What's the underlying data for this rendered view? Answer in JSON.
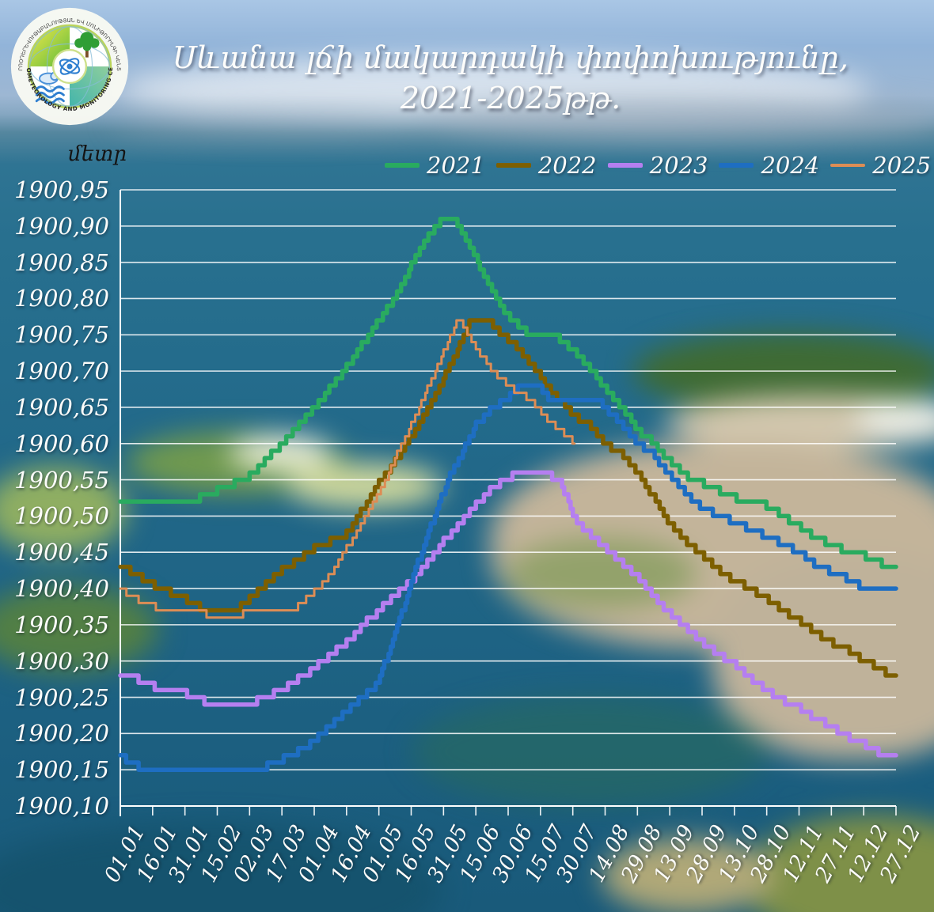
{
  "header": {
    "logo": {
      "top_text": "«ՀԻԴՐՈՕԴԵՐԵՎՈՒԹԱԲԱՆՈՒԹՅԱՆ ԵՎ ՄՈՆԻԹՈՐԻՆԳԻ ԿԵՆՏՐՈՆ»",
      "bottom_text": "\"HYDROMETEOROLOGY AND MONITORING CENTER\""
    },
    "title_line1": "Սևանա լճի մակարդակի փոփոխությունը,",
    "title_line2": "2021-2025թթ."
  },
  "chart_data": {
    "type": "line",
    "line_style": "stepped",
    "title": "Սևանա լճի մակարդակի փոփոխությունը, 2021-2025թթ.",
    "y_axis_title": "մետր",
    "ylim": [
      1900.1,
      1900.95
    ],
    "y_tick_step": 0.05,
    "y_tick_labels": [
      "1900,95",
      "1900,90",
      "1900,85",
      "1900,80",
      "1900,75",
      "1900,70",
      "1900,65",
      "1900,60",
      "1900,55",
      "1900,50",
      "1900,45",
      "1900,40",
      "1900,35",
      "1900,30",
      "1900,25",
      "1900,20",
      "1900,15",
      "1900,10"
    ],
    "x_tick_labels": [
      "01.01",
      "16.01",
      "31.01",
      "15.02",
      "02.03",
      "17.03",
      "01.04",
      "16.04",
      "01.05",
      "16.05",
      "31.05",
      "15.06",
      "30.06",
      "15.07",
      "30.07",
      "14.08",
      "29.08",
      "13.09",
      "28.09",
      "13.10",
      "28.10",
      "12.11",
      "27.11",
      "12.12",
      "27.12"
    ],
    "x_days_per_tick": 15,
    "grid": true,
    "legend_position": "top",
    "series": [
      {
        "name": "2021",
        "color": "#29ab5f",
        "stroke_width": 5.5,
        "keypoints": [
          [
            0,
            1900.52
          ],
          [
            2.2,
            1900.52
          ],
          [
            3,
            1900.535
          ],
          [
            4,
            1900.555
          ],
          [
            5,
            1900.6
          ],
          [
            6,
            1900.65
          ],
          [
            7,
            1900.705
          ],
          [
            8,
            1900.77
          ],
          [
            8.5,
            1900.8
          ],
          [
            9,
            1900.845
          ],
          [
            9.6,
            1900.89
          ],
          [
            9.9,
            1900.905
          ],
          [
            10.3,
            1900.91
          ],
          [
            10.5,
            1900.9
          ],
          [
            11,
            1900.855
          ],
          [
            11.5,
            1900.81
          ],
          [
            12,
            1900.775
          ],
          [
            12.5,
            1900.755
          ],
          [
            12.7,
            1900.75
          ],
          [
            13.4,
            1900.75
          ],
          [
            14,
            1900.73
          ],
          [
            14.6,
            1900.7
          ],
          [
            15,
            1900.675
          ],
          [
            15.5,
            1900.65
          ],
          [
            16,
            1900.62
          ],
          [
            16.5,
            1900.6
          ],
          [
            17,
            1900.575
          ],
          [
            17.5,
            1900.555
          ],
          [
            18,
            1900.545
          ],
          [
            18.3,
            1900.54
          ],
          [
            19,
            1900.525
          ],
          [
            19.8,
            1900.52
          ],
          [
            20.5,
            1900.5
          ],
          [
            21,
            1900.485
          ],
          [
            21.5,
            1900.47
          ],
          [
            22,
            1900.46
          ],
          [
            22.5,
            1900.45
          ],
          [
            23,
            1900.445
          ],
          [
            23.5,
            1900.435
          ],
          [
            23.8,
            1900.43
          ],
          [
            24,
            1900.43
          ]
        ]
      },
      {
        "name": "2022",
        "color": "#7d5f00",
        "stroke_width": 5.5,
        "keypoints": [
          [
            0,
            1900.43
          ],
          [
            0.5,
            1900.42
          ],
          [
            1,
            1900.405
          ],
          [
            1.5,
            1900.395
          ],
          [
            2,
            1900.385
          ],
          [
            2.6,
            1900.37
          ],
          [
            3.6,
            1900.37
          ],
          [
            4,
            1900.385
          ],
          [
            4.5,
            1900.405
          ],
          [
            5,
            1900.425
          ],
          [
            5.5,
            1900.44
          ],
          [
            6,
            1900.455
          ],
          [
            6.5,
            1900.465
          ],
          [
            7,
            1900.475
          ],
          [
            7.5,
            1900.51
          ],
          [
            8,
            1900.545
          ],
          [
            8.5,
            1900.575
          ],
          [
            9,
            1900.61
          ],
          [
            9.5,
            1900.645
          ],
          [
            10,
            1900.69
          ],
          [
            10.5,
            1900.735
          ],
          [
            10.8,
            1900.765
          ],
          [
            11,
            1900.77
          ],
          [
            11.4,
            1900.77
          ],
          [
            11.8,
            1900.75
          ],
          [
            12.2,
            1900.735
          ],
          [
            12.7,
            1900.71
          ],
          [
            13.2,
            1900.68
          ],
          [
            13.7,
            1900.655
          ],
          [
            14,
            1900.64
          ],
          [
            14.5,
            1900.625
          ],
          [
            15,
            1900.6
          ],
          [
            15.5,
            1900.585
          ],
          [
            16,
            1900.56
          ],
          [
            16.5,
            1900.525
          ],
          [
            17,
            1900.49
          ],
          [
            17.6,
            1900.46
          ],
          [
            18,
            1900.445
          ],
          [
            18.5,
            1900.425
          ],
          [
            19,
            1900.41
          ],
          [
            19.5,
            1900.4
          ],
          [
            20,
            1900.385
          ],
          [
            20.5,
            1900.37
          ],
          [
            21,
            1900.355
          ],
          [
            21.5,
            1900.34
          ],
          [
            22,
            1900.325
          ],
          [
            22.5,
            1900.315
          ],
          [
            23,
            1900.3
          ],
          [
            23.5,
            1900.29
          ],
          [
            23.8,
            1900.28
          ],
          [
            24,
            1900.28
          ]
        ]
      },
      {
        "name": "2023",
        "color": "#b57ff0",
        "stroke_width": 5.5,
        "keypoints": [
          [
            0,
            1900.28
          ],
          [
            0.5,
            1900.275
          ],
          [
            1,
            1900.265
          ],
          [
            1.5,
            1900.26
          ],
          [
            2,
            1900.255
          ],
          [
            2.8,
            1900.24
          ],
          [
            3.9,
            1900.24
          ],
          [
            4.5,
            1900.25
          ],
          [
            5,
            1900.26
          ],
          [
            5.5,
            1900.275
          ],
          [
            6,
            1900.29
          ],
          [
            6.5,
            1900.31
          ],
          [
            7,
            1900.325
          ],
          [
            7.5,
            1900.35
          ],
          [
            8,
            1900.37
          ],
          [
            8.5,
            1900.39
          ],
          [
            9,
            1900.41
          ],
          [
            9.5,
            1900.435
          ],
          [
            10,
            1900.465
          ],
          [
            10.5,
            1900.49
          ],
          [
            11,
            1900.515
          ],
          [
            11.5,
            1900.54
          ],
          [
            12,
            1900.55
          ],
          [
            12.2,
            1900.56
          ],
          [
            13.3,
            1900.555
          ],
          [
            13.6,
            1900.55
          ],
          [
            14,
            1900.5
          ],
          [
            14.5,
            1900.475
          ],
          [
            15,
            1900.455
          ],
          [
            15.5,
            1900.435
          ],
          [
            16,
            1900.415
          ],
          [
            16.5,
            1900.39
          ],
          [
            17,
            1900.365
          ],
          [
            17.5,
            1900.345
          ],
          [
            18,
            1900.325
          ],
          [
            18.5,
            1900.31
          ],
          [
            19,
            1900.295
          ],
          [
            19.5,
            1900.275
          ],
          [
            20,
            1900.26
          ],
          [
            20.5,
            1900.245
          ],
          [
            21,
            1900.235
          ],
          [
            21.5,
            1900.22
          ],
          [
            22,
            1900.21
          ],
          [
            22.5,
            1900.195
          ],
          [
            23,
            1900.185
          ],
          [
            23.4,
            1900.175
          ],
          [
            23.7,
            1900.17
          ],
          [
            24,
            1900.17
          ]
        ]
      },
      {
        "name": "2024",
        "color": "#1e6ec2",
        "stroke_width": 5.5,
        "keypoints": [
          [
            0,
            1900.17
          ],
          [
            0.3,
            1900.16
          ],
          [
            0.7,
            1900.15
          ],
          [
            1.9,
            1900.15
          ],
          [
            2.1,
            1900.145
          ],
          [
            2.9,
            1900.145
          ],
          [
            3.1,
            1900.15
          ],
          [
            4.3,
            1900.15
          ],
          [
            4.8,
            1900.16
          ],
          [
            5.5,
            1900.175
          ],
          [
            6,
            1900.19
          ],
          [
            6.5,
            1900.21
          ],
          [
            7,
            1900.23
          ],
          [
            7.5,
            1900.25
          ],
          [
            7.9,
            1900.265
          ],
          [
            8.3,
            1900.31
          ],
          [
            8.7,
            1900.365
          ],
          [
            9,
            1900.41
          ],
          [
            9.4,
            1900.46
          ],
          [
            9.8,
            1900.51
          ],
          [
            10.2,
            1900.555
          ],
          [
            10.6,
            1900.59
          ],
          [
            11,
            1900.625
          ],
          [
            11.5,
            1900.648
          ],
          [
            12,
            1900.663
          ],
          [
            12.3,
            1900.675
          ],
          [
            13,
            1900.675
          ],
          [
            13.3,
            1900.66
          ],
          [
            14.8,
            1900.66
          ],
          [
            15.3,
            1900.635
          ],
          [
            15.7,
            1900.615
          ],
          [
            16,
            1900.6
          ],
          [
            16.4,
            1900.59
          ],
          [
            16.8,
            1900.565
          ],
          [
            17.2,
            1900.545
          ],
          [
            17.6,
            1900.525
          ],
          [
            18,
            1900.51
          ],
          [
            18.6,
            1900.5
          ],
          [
            19.3,
            1900.485
          ],
          [
            19.8,
            1900.475
          ],
          [
            20.3,
            1900.465
          ],
          [
            21,
            1900.45
          ],
          [
            21.6,
            1900.43
          ],
          [
            22.2,
            1900.42
          ],
          [
            22.8,
            1900.405
          ],
          [
            23.2,
            1900.4
          ],
          [
            24,
            1900.395
          ]
        ]
      },
      {
        "name": "2025",
        "color": "#dd8d55",
        "stroke_width": 3,
        "keypoints": [
          [
            0,
            1900.4
          ],
          [
            0.5,
            1900.385
          ],
          [
            1.3,
            1900.37
          ],
          [
            2.6,
            1900.365
          ],
          [
            2.8,
            1900.355
          ],
          [
            3.5,
            1900.355
          ],
          [
            3.8,
            1900.365
          ],
          [
            5,
            1900.365
          ],
          [
            5.5,
            1900.375
          ],
          [
            6,
            1900.395
          ],
          [
            6.5,
            1900.42
          ],
          [
            7,
            1900.455
          ],
          [
            7.5,
            1900.49
          ],
          [
            8,
            1900.53
          ],
          [
            8.5,
            1900.58
          ],
          [
            9,
            1900.625
          ],
          [
            9.5,
            1900.675
          ],
          [
            10,
            1900.725
          ],
          [
            10.4,
            1900.765
          ],
          [
            10.55,
            1900.77
          ],
          [
            10.8,
            1900.745
          ],
          [
            11.2,
            1900.72
          ],
          [
            11.6,
            1900.695
          ],
          [
            12,
            1900.68
          ],
          [
            12.5,
            1900.665
          ],
          [
            12.9,
            1900.65
          ],
          [
            13.4,
            1900.625
          ],
          [
            13.8,
            1900.61
          ],
          [
            14.05,
            1900.6
          ]
        ]
      }
    ]
  }
}
